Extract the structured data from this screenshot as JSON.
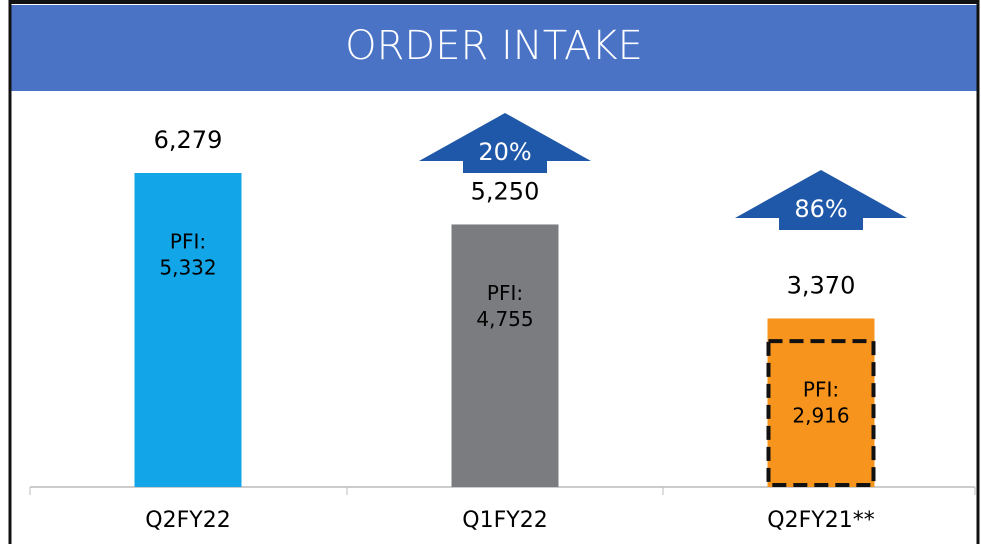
{
  "chart_data": {
    "type": "bar",
    "title": "ORDER INTAKE",
    "categories": [
      "Q2FY22",
      "Q1FY22",
      "Q2FY21**"
    ],
    "values": [
      6279,
      5250,
      3370
    ],
    "value_labels": [
      "6,279",
      "5,250",
      "3,370"
    ],
    "colors": [
      "#12a5e8",
      "#7b7c7f",
      "#f7941d"
    ],
    "pfi_label": "PFI:",
    "pfi_values": [
      5332,
      4755,
      2916
    ],
    "pfi_value_labels": [
      "5,332",
      "4,755",
      "2,916"
    ],
    "pfi_boxed": [
      false,
      false,
      true
    ],
    "changes": [
      null,
      20,
      86
    ],
    "change_labels": [
      null,
      "20%",
      "86%"
    ],
    "arrow_color": "#1f58a8"
  }
}
